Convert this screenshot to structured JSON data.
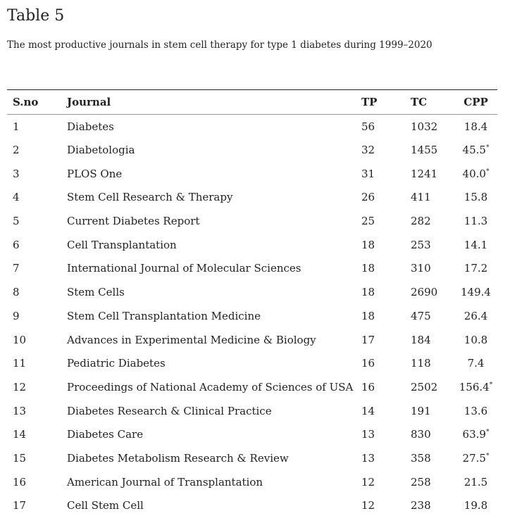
{
  "header": {
    "title": "Table 5",
    "caption": "The most productive journals in stem cell therapy for type 1 diabetes during 1999–2020"
  },
  "table": {
    "columns": [
      "S.no",
      "Journal",
      "TP",
      "TC",
      "CPP"
    ],
    "rows": [
      {
        "sno": "1",
        "journal": "Diabetes",
        "tp": "56",
        "tc": "1032",
        "cpp": "18.4"
      },
      {
        "sno": "2",
        "journal": "Diabetologia",
        "tp": "32",
        "tc": "1455",
        "cpp": "45.5",
        "sup": "*"
      },
      {
        "sno": "3",
        "journal": "PLOS One",
        "tp": "31",
        "tc": "1241",
        "cpp": "40.0",
        "sup": "*"
      },
      {
        "sno": "4",
        "journal": "Stem Cell Research & Therapy",
        "tp": "26",
        "tc": "411",
        "cpp": "15.8"
      },
      {
        "sno": "5",
        "journal": "Current Diabetes Report",
        "tp": "25",
        "tc": "282",
        "cpp": "11.3"
      },
      {
        "sno": "6",
        "journal": "Cell Transplantation",
        "tp": "18",
        "tc": "253",
        "cpp": "14.1"
      },
      {
        "sno": "7",
        "journal": "International Journal of Molecular Sciences",
        "tp": "18",
        "tc": "310",
        "cpp": "17.2"
      },
      {
        "sno": "8",
        "journal": "Stem Cells",
        "tp": "18",
        "tc": "2690",
        "cpp": "149.4"
      },
      {
        "sno": "9",
        "journal": "Stem Cell Transplantation Medicine",
        "tp": "18",
        "tc": "475",
        "cpp": "26.4"
      },
      {
        "sno": "10",
        "journal": "Advances in Experimental Medicine & Biology",
        "tp": "17",
        "tc": "184",
        "cpp": "10.8"
      },
      {
        "sno": "11",
        "journal": "Pediatric Diabetes",
        "tp": "16",
        "tc": "118",
        "cpp": "7.4"
      },
      {
        "sno": "12",
        "journal": "Proceedings of National Academy of Sciences of USA",
        "tp": "16",
        "tc": "2502",
        "cpp": "156.4",
        "sup": "*"
      },
      {
        "sno": "13",
        "journal": "Diabetes Research & Clinical Practice",
        "tp": "14",
        "tc": "191",
        "cpp": "13.6"
      },
      {
        "sno": "14",
        "journal": "Diabetes Care",
        "tp": "13",
        "tc": "830",
        "cpp": "63.9",
        "sup": "*"
      },
      {
        "sno": "15",
        "journal": "Diabetes Metabolism Research & Review",
        "tp": "13",
        "tc": "358",
        "cpp": "27.5",
        "sup": "*"
      },
      {
        "sno": "16",
        "journal": "American Journal of Transplantation",
        "tp": "12",
        "tc": "258",
        "cpp": "21.5"
      },
      {
        "sno": "17",
        "journal": "Cell Stem Cell",
        "tp": "12",
        "tc": "238",
        "cpp": "19.8"
      }
    ]
  }
}
